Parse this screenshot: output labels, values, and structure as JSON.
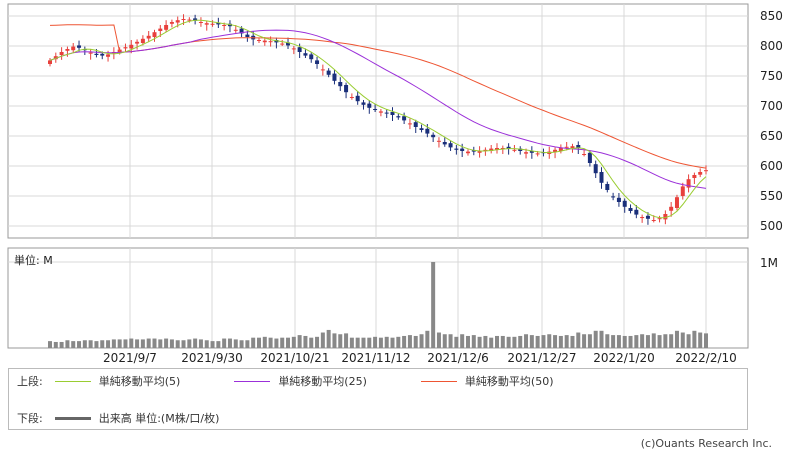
{
  "chart_data": {
    "type": "candlestick",
    "price_axis": {
      "ticks": [
        500,
        550,
        600,
        650,
        700,
        750,
        800,
        850
      ],
      "range": [
        480,
        870
      ]
    },
    "volume_axis": {
      "unit_label": "単位: M",
      "tick_labels": [
        "1M"
      ],
      "max": 1.0
    },
    "x_tick_labels": [
      "2021/9/7",
      "2021/9/30",
      "2021/10/21",
      "2021/11/12",
      "2021/12/6",
      "2021/12/27",
      "2022/1/20",
      "2022/2/10"
    ],
    "colors": {
      "up": "#e8403c",
      "down": "#1a2f7a",
      "ma5": "#9acd32",
      "ma25": "#9b30d9",
      "ma50": "#ee5533",
      "volume": "#888888"
    },
    "closes": [
      776,
      783,
      790,
      795,
      799,
      797,
      793,
      789,
      785,
      784,
      786,
      790,
      794,
      798,
      802,
      807,
      812,
      817,
      823,
      829,
      835,
      840,
      843,
      845,
      844,
      842,
      840,
      838,
      837,
      836,
      835,
      833,
      827,
      821,
      815,
      811,
      810,
      809,
      808,
      806,
      804,
      801,
      796,
      790,
      784,
      778,
      770,
      761,
      752,
      742,
      733,
      723,
      715,
      708,
      702,
      697,
      694,
      691,
      688,
      685,
      681,
      676,
      671,
      665,
      660,
      654,
      648,
      642,
      636,
      631,
      627,
      625,
      624,
      624,
      625,
      627,
      629,
      630,
      630,
      629,
      627,
      625,
      623,
      622,
      621,
      622,
      624,
      627,
      630,
      632,
      633,
      630,
      620,
      605,
      588,
      572,
      560,
      549,
      540,
      532,
      525,
      519,
      515,
      512,
      510,
      513,
      520,
      532,
      548,
      566,
      578,
      585,
      590,
      593
    ],
    "volumes": [
      0.08,
      0.07,
      0.07,
      0.09,
      0.08,
      0.08,
      0.09,
      0.09,
      0.08,
      0.09,
      0.09,
      0.1,
      0.1,
      0.1,
      0.11,
      0.1,
      0.1,
      0.11,
      0.11,
      0.1,
      0.11,
      0.1,
      0.09,
      0.09,
      0.1,
      0.11,
      0.1,
      0.09,
      0.08,
      0.08,
      0.11,
      0.11,
      0.1,
      0.09,
      0.09,
      0.12,
      0.12,
      0.13,
      0.12,
      0.11,
      0.12,
      0.12,
      0.13,
      0.15,
      0.14,
      0.12,
      0.13,
      0.18,
      0.21,
      0.17,
      0.16,
      0.17,
      0.12,
      0.12,
      0.12,
      0.12,
      0.13,
      0.12,
      0.13,
      0.12,
      0.13,
      0.14,
      0.15,
      0.14,
      0.16,
      0.2,
      1.0,
      0.18,
      0.16,
      0.16,
      0.13,
      0.16,
      0.14,
      0.15,
      0.13,
      0.14,
      0.12,
      0.14,
      0.14,
      0.13,
      0.13,
      0.14,
      0.16,
      0.15,
      0.14,
      0.15,
      0.16,
      0.15,
      0.14,
      0.15,
      0.14,
      0.18,
      0.16,
      0.16,
      0.2,
      0.2,
      0.16,
      0.15,
      0.15,
      0.14,
      0.14,
      0.15,
      0.16,
      0.15,
      0.17,
      0.15,
      0.16,
      0.16,
      0.2,
      0.18,
      0.16,
      0.2,
      0.18,
      0.17
    ]
  },
  "legend": {
    "upper_label": "上段:",
    "lower_label": "下段:",
    "ma5": "単純移動平均(5)",
    "ma25": "単純移動平均(25)",
    "ma50": "単純移動平均(50)",
    "volume": "出来高 単位:(M株/口/枚)"
  },
  "credit": "(c)Ouants Research Inc."
}
